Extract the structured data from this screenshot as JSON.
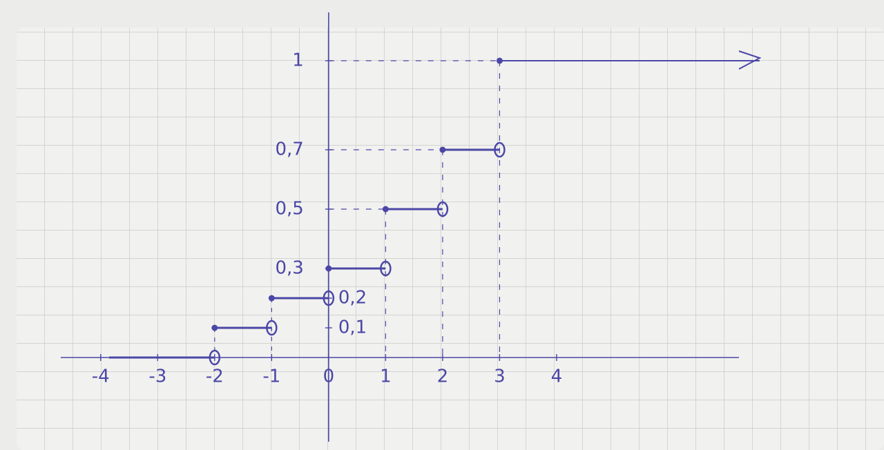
{
  "chart_data": {
    "type": "step",
    "x": [
      -2,
      -1,
      0,
      1,
      2,
      3
    ],
    "values": [
      0.1,
      0.2,
      0.3,
      0.5,
      0.7,
      1
    ],
    "color": "#4b47a6",
    "xlim": [
      -4.7,
      7.2
    ],
    "ylim": [
      0,
      1.1
    ],
    "xticks": [
      -4,
      -3,
      -2,
      -1,
      0,
      1,
      2,
      3,
      4
    ],
    "yticks": [
      {
        "value": 0.1,
        "label": "0,1"
      },
      {
        "value": 0.2,
        "label": "0,2"
      },
      {
        "value": 0.3,
        "label": "0,3"
      },
      {
        "value": 0.5,
        "label": "0,5"
      },
      {
        "value": 0.7,
        "label": "0,7"
      },
      1
    ]
  }
}
